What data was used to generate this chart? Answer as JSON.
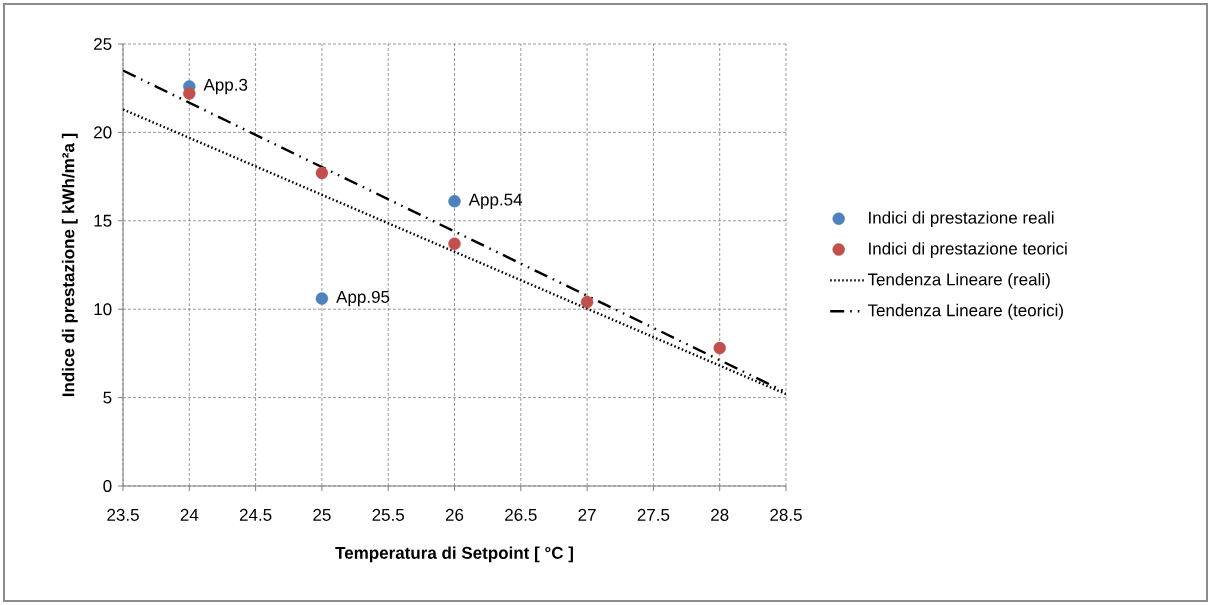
{
  "chart_data": {
    "type": "scatter",
    "xlabel": "Temperatura di Setpoint [ °C ]",
    "ylabel": "Indice di prestazione [ kWh/m²a ]",
    "xlim": [
      23.5,
      28.5
    ],
    "xticks": [
      23.5,
      24,
      24.5,
      25,
      25.5,
      26,
      26.5,
      27,
      27.5,
      28,
      28.5
    ],
    "ylim": [
      0,
      25
    ],
    "yticks": [
      0,
      5,
      10,
      15,
      20,
      25
    ],
    "grid": true,
    "legend": "right",
    "series": [
      {
        "name": "Indici di prestazione reali",
        "marker": "circle",
        "color": "#4f81bd",
        "x": [
          24,
          25,
          26
        ],
        "values": [
          22.6,
          10.6,
          16.1
        ]
      },
      {
        "name": "Indici di prestazione teorici",
        "marker": "circle",
        "color": "#c0504d",
        "x": [
          24,
          25,
          26,
          27,
          28
        ],
        "values": [
          22.2,
          17.7,
          13.7,
          10.4,
          7.8
        ]
      },
      {
        "name": "Tendenza Lineare (reali)",
        "type": "line",
        "color": "#000000",
        "line_style": "dotted",
        "marker": "none",
        "x": [
          23.5,
          28.5
        ],
        "values": [
          21.3,
          5.2
        ]
      },
      {
        "name": "Tendenza Lineare (teorici)",
        "type": "line",
        "color": "#000000",
        "line_style": "dashdot",
        "marker": "none",
        "x": [
          23.5,
          28.5
        ],
        "values": [
          23.5,
          5.3
        ]
      }
    ],
    "annotations": [
      {
        "text": "App.3",
        "x": 24,
        "y": 22.6
      },
      {
        "text": "App.54",
        "x": 26,
        "y": 16.1
      },
      {
        "text": "App.95",
        "x": 25,
        "y": 10.6
      }
    ]
  }
}
